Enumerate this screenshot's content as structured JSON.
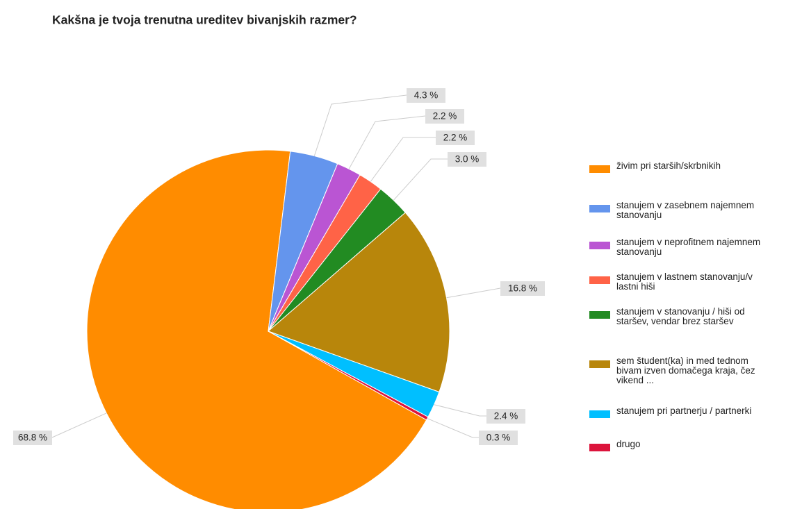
{
  "chart_data": {
    "type": "pie",
    "title": "Kakšna je tvoja trenutna ureditev bivanjskih razmer?",
    "categories": [
      "živim pri starših/skrbnikih",
      "stanujem v zasebnem najemnem stanovanju",
      "stanujem v neprofitnem najemnem stanovanju",
      "stanujem v lastnem stanovanju/v lastni hiši",
      "stanujem v stanovanju / hiši od staršev, vendar brez staršev",
      "sem študent(ka) in med tednom bivam izven domačega kraja, čez vikend ...",
      "stanujem pri partnerju / partnerki",
      "drugo"
    ],
    "values": [
      68.8,
      4.3,
      2.2,
      2.2,
      3.0,
      16.8,
      2.4,
      0.3
    ],
    "value_labels": [
      "68.8 %",
      "4.3 %",
      "2.2 %",
      "2.2 %",
      "3.0 %",
      "16.8 %",
      "2.4 %",
      "0.3 %"
    ],
    "colors": [
      "#ff8c00",
      "#6495ed",
      "#ba55d3",
      "#ff6347",
      "#228b22",
      "#b8860b",
      "#00bfff",
      "#dc143c"
    ],
    "legend": "right"
  }
}
